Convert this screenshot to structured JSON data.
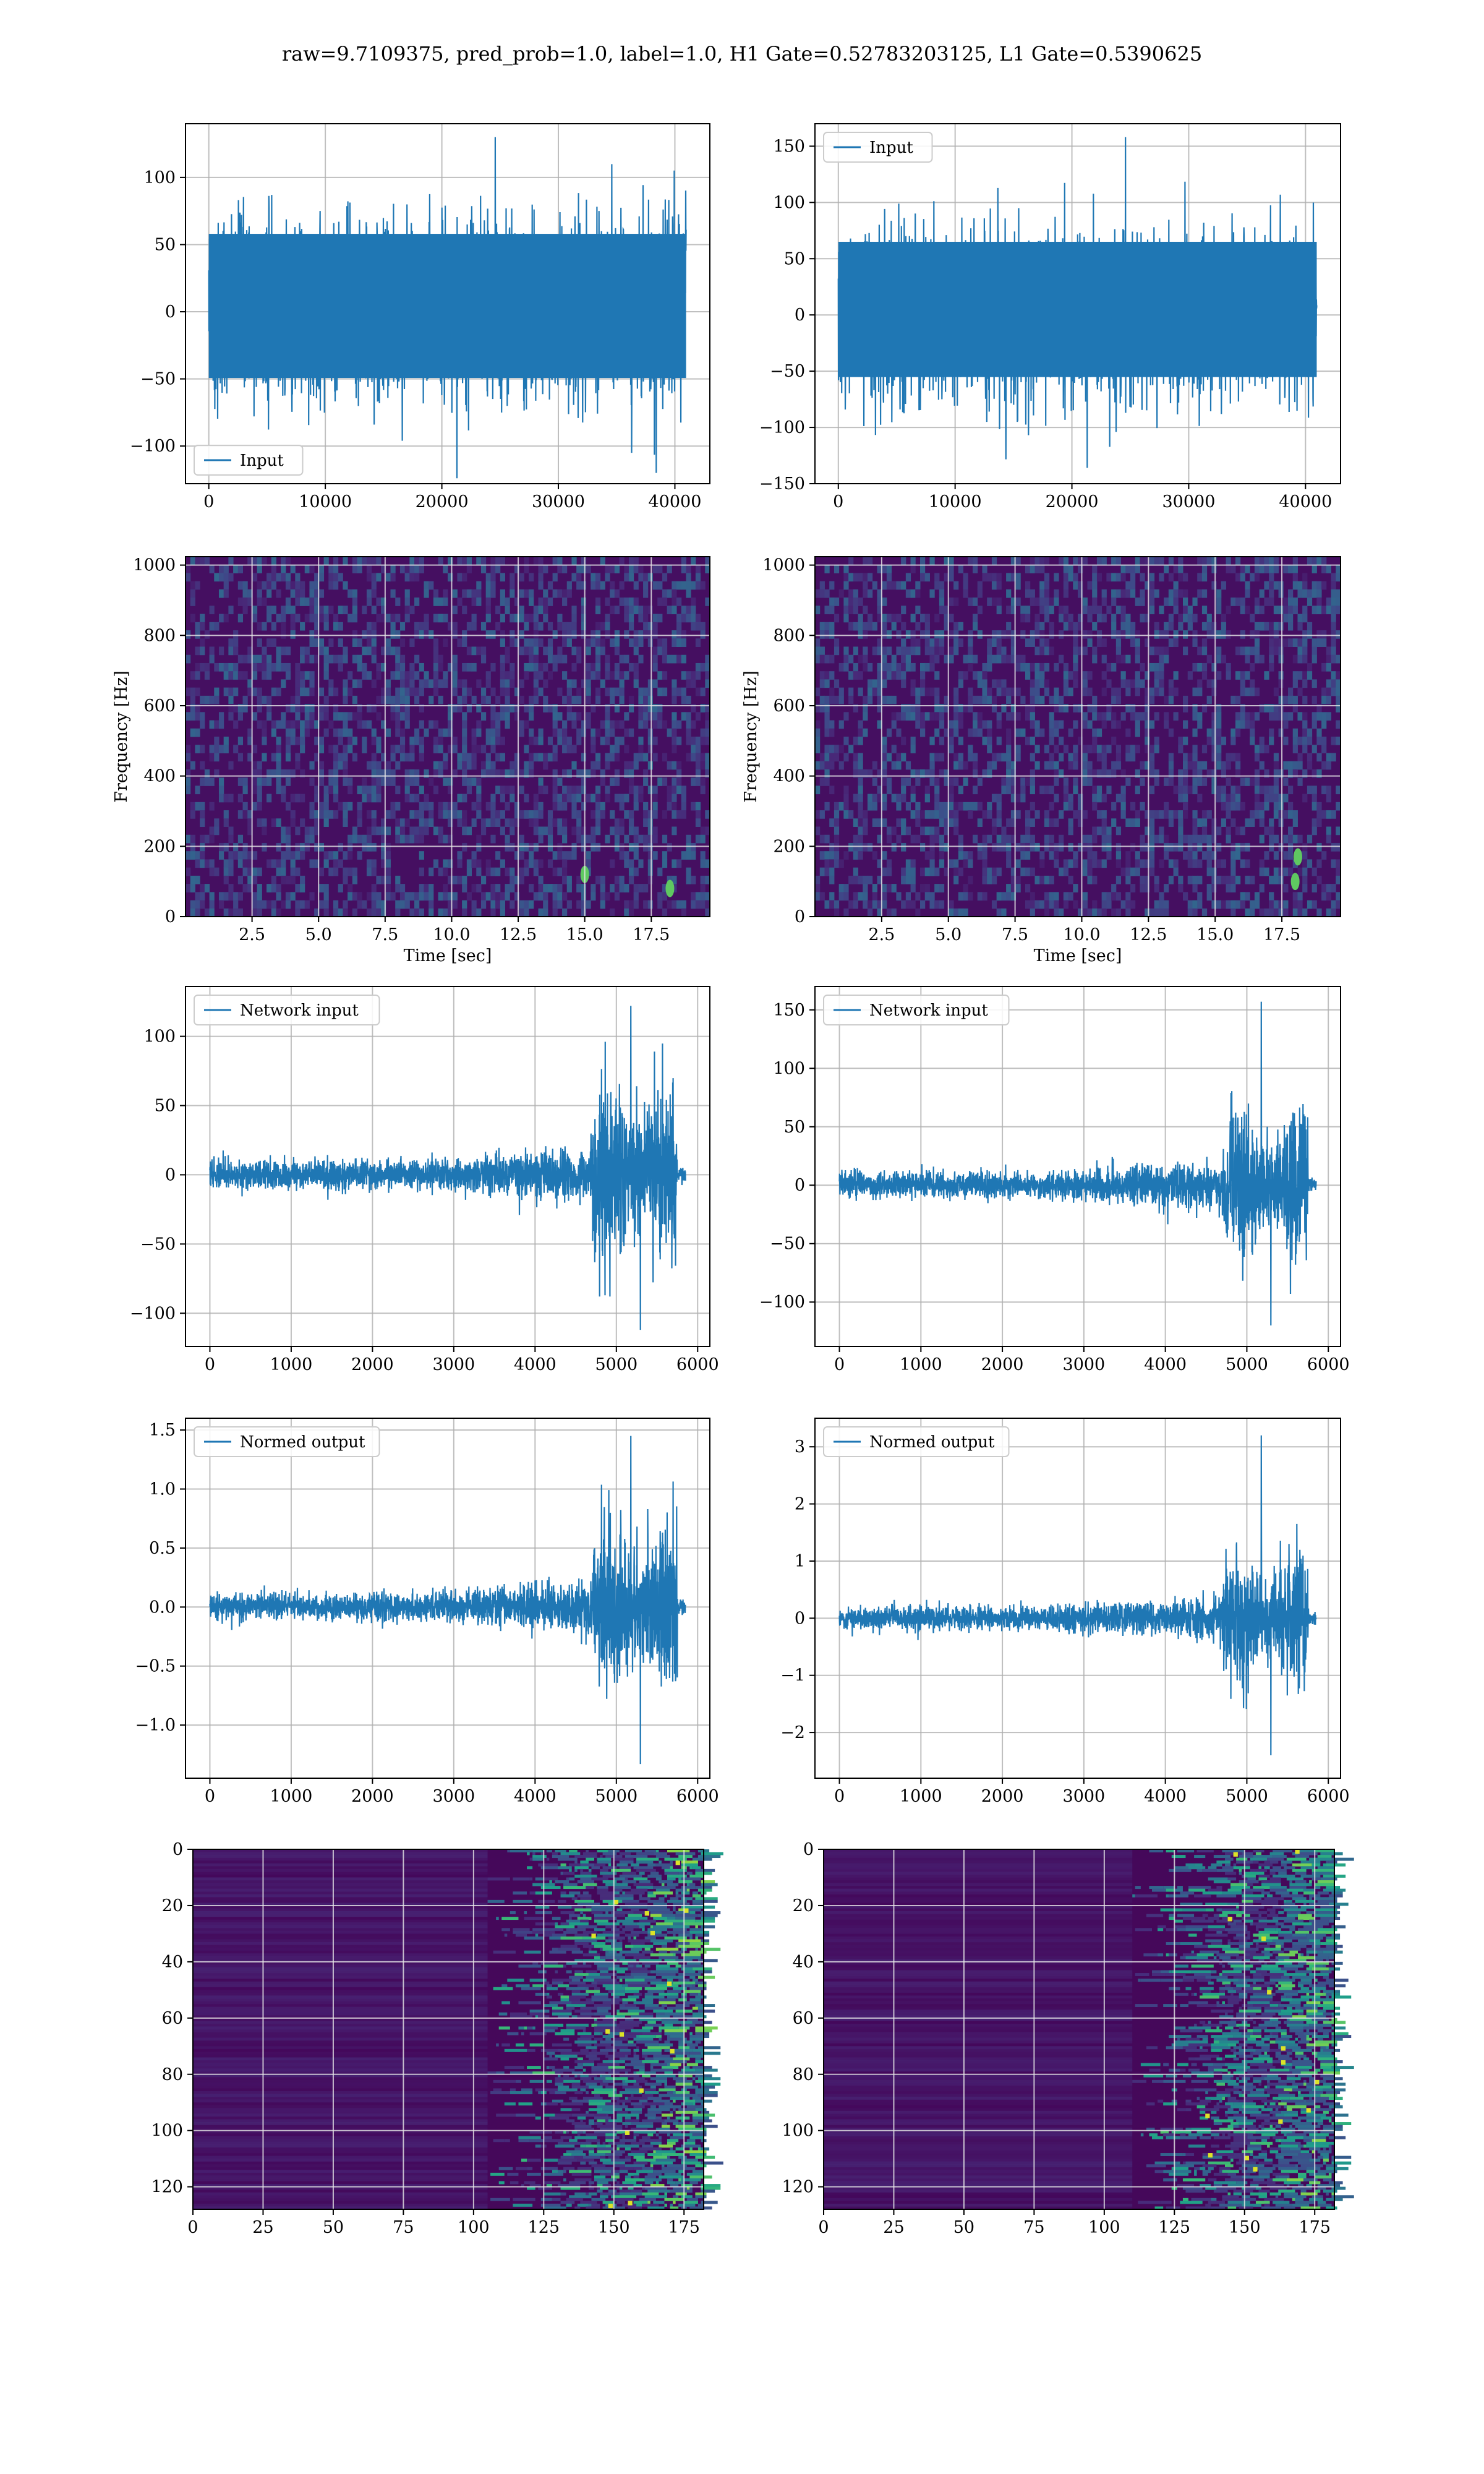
{
  "suptitle": "raw=9.7109375, pred_prob=1.0, label=1.0, H1 Gate=0.52783203125, L1 Gate=0.5390625",
  "colors": {
    "line": "#1f77b4",
    "grid": "#b0b0b0",
    "viridis_low": "#440154",
    "viridis_mid": "#21908d",
    "viridis_high": "#fde725"
  },
  "chart_data": [
    {
      "id": "h1-input",
      "type": "line",
      "legend": "Input",
      "legend_loc": "lower-left",
      "xlim": [
        -2000,
        43000
      ],
      "ylim": [
        -128,
        140
      ],
      "xticks": [
        0,
        10000,
        20000,
        30000,
        40000
      ],
      "xticklabels": [
        "0",
        "10000",
        "20000",
        "30000",
        "40000"
      ],
      "yticks": [
        -100,
        -50,
        0,
        50,
        100
      ],
      "yticklabels": [
        "−100",
        "−50",
        "0",
        "50",
        "100"
      ],
      "grid": true,
      "signal": {
        "x_start": 0,
        "x_end": 40960,
        "n_samples": 40960,
        "core_amplitude": 58,
        "max": 130,
        "min": -124,
        "envelope": "stationary"
      }
    },
    {
      "id": "l1-input",
      "type": "line",
      "legend": "Input",
      "legend_loc": "upper-left",
      "xlim": [
        -2000,
        43000
      ],
      "ylim": [
        -150,
        170
      ],
      "xticks": [
        0,
        10000,
        20000,
        30000,
        40000
      ],
      "xticklabels": [
        "0",
        "10000",
        "20000",
        "30000",
        "40000"
      ],
      "yticks": [
        -150,
        -100,
        -50,
        0,
        50,
        100,
        150
      ],
      "yticklabels": [
        "−150",
        "−100",
        "−50",
        "0",
        "50",
        "100",
        "150"
      ],
      "grid": true,
      "signal": {
        "x_start": 0,
        "x_end": 40960,
        "n_samples": 40960,
        "core_amplitude": 65,
        "max": 158,
        "min": -136,
        "envelope": "stationary"
      }
    },
    {
      "id": "h1-spectrogram",
      "type": "heatmap",
      "colormap": "viridis",
      "xlabel": "Time [sec]",
      "ylabel": "Frequency [Hz]",
      "xlim": [
        0,
        19.7
      ],
      "ylim": [
        0,
        1024
      ],
      "xticks": [
        2.5,
        5,
        7.5,
        10,
        12.5,
        15,
        17.5
      ],
      "xticklabels": [
        "2.5",
        "5.0",
        "7.5",
        "10.0",
        "12.5",
        "15.0",
        "17.5"
      ],
      "yticks": [
        0,
        200,
        400,
        600,
        800,
        1000
      ],
      "yticklabels": [
        "0",
        "200",
        "400",
        "600",
        "800",
        "1000"
      ],
      "grid": true,
      "bright_spots": [
        {
          "t": 15.0,
          "f": 120
        },
        {
          "t": 18.2,
          "f": 80
        }
      ]
    },
    {
      "id": "l1-spectrogram",
      "type": "heatmap",
      "colormap": "viridis",
      "xlabel": "Time [sec]",
      "ylabel": "Frequency [Hz]",
      "xlim": [
        0,
        19.7
      ],
      "ylim": [
        0,
        1024
      ],
      "xticks": [
        2.5,
        5,
        7.5,
        10,
        12.5,
        15,
        17.5
      ],
      "xticklabels": [
        "2.5",
        "5.0",
        "7.5",
        "10.0",
        "12.5",
        "15.0",
        "17.5"
      ],
      "yticks": [
        0,
        200,
        400,
        600,
        800,
        1000
      ],
      "yticklabels": [
        "0",
        "200",
        "400",
        "600",
        "800",
        "1000"
      ],
      "grid": true,
      "bright_spots": [
        {
          "t": 18.0,
          "f": 100
        },
        {
          "t": 18.1,
          "f": 170
        }
      ]
    },
    {
      "id": "h1-network-input",
      "type": "line",
      "legend": "Network input",
      "legend_loc": "upper-left",
      "xlim": [
        -300,
        6150
      ],
      "ylim": [
        -124,
        136
      ],
      "xticks": [
        0,
        1000,
        2000,
        3000,
        4000,
        5000,
        6000
      ],
      "xticklabels": [
        "0",
        "1000",
        "2000",
        "3000",
        "4000",
        "5000",
        "6000"
      ],
      "yticks": [
        -100,
        -50,
        0,
        50,
        100
      ],
      "yticklabels": [
        "−100",
        "−50",
        "0",
        "50",
        "100"
      ],
      "grid": true,
      "signal": {
        "x_start": 0,
        "x_end": 5850,
        "n_samples": 5850,
        "base_amplitude": 11,
        "burst_start": 4700,
        "burst_end": 5750,
        "burst_amplitude": 55,
        "max": 122,
        "min": -112,
        "tail_start": 5750
      }
    },
    {
      "id": "l1-network-input",
      "type": "line",
      "legend": "Network input",
      "legend_loc": "upper-left",
      "xlim": [
        -300,
        6150
      ],
      "ylim": [
        -138,
        170
      ],
      "xticks": [
        0,
        1000,
        2000,
        3000,
        4000,
        5000,
        6000
      ],
      "xticklabels": [
        "0",
        "1000",
        "2000",
        "3000",
        "4000",
        "5000",
        "6000"
      ],
      "yticks": [
        -100,
        -50,
        0,
        50,
        100,
        150
      ],
      "yticklabels": [
        "−100",
        "−50",
        "0",
        "50",
        "100",
        "150"
      ],
      "grid": true,
      "signal": {
        "x_start": 0,
        "x_end": 5850,
        "n_samples": 5850,
        "base_amplitude": 12,
        "burst_start": 4700,
        "burst_end": 5750,
        "burst_amplitude": 50,
        "max": 157,
        "min": -120,
        "tail_start": 5750
      }
    },
    {
      "id": "h1-normed-output",
      "type": "line",
      "legend": "Normed output",
      "legend_loc": "upper-left",
      "xlim": [
        -300,
        6150
      ],
      "ylim": [
        -1.45,
        1.6
      ],
      "xticks": [
        0,
        1000,
        2000,
        3000,
        4000,
        5000,
        6000
      ],
      "xticklabels": [
        "0",
        "1000",
        "2000",
        "3000",
        "4000",
        "5000",
        "6000"
      ],
      "yticks": [
        -1.0,
        -0.5,
        0.0,
        0.5,
        1.0,
        1.5
      ],
      "yticklabels": [
        "−1.0",
        "−0.5",
        "0.0",
        "0.5",
        "1.0",
        "1.5"
      ],
      "grid": true,
      "signal": {
        "x_start": 0,
        "x_end": 5850,
        "n_samples": 5850,
        "base_amplitude": 0.12,
        "burst_start": 4700,
        "burst_end": 5750,
        "burst_amplitude": 0.6,
        "max": 1.45,
        "min": -1.33,
        "tail_start": 5750
      }
    },
    {
      "id": "l1-normed-output",
      "type": "line",
      "legend": "Normed output",
      "legend_loc": "upper-left",
      "xlim": [
        -300,
        6150
      ],
      "ylim": [
        -2.8,
        3.5
      ],
      "xticks": [
        0,
        1000,
        2000,
        3000,
        4000,
        5000,
        6000
      ],
      "xticklabels": [
        "0",
        "1000",
        "2000",
        "3000",
        "4000",
        "5000",
        "6000"
      ],
      "yticks": [
        -2,
        -1,
        0,
        1,
        2,
        3
      ],
      "yticklabels": [
        "−2",
        "−1",
        "0",
        "1",
        "2",
        "3"
      ],
      "grid": true,
      "signal": {
        "x_start": 0,
        "x_end": 5850,
        "n_samples": 5850,
        "base_amplitude": 0.22,
        "burst_start": 4700,
        "burst_end": 5750,
        "burst_amplitude": 0.95,
        "max": 3.2,
        "min": -2.4,
        "tail_start": 5750
      }
    },
    {
      "id": "h1-feature-map",
      "type": "heatmap",
      "colormap": "viridis",
      "xlim": [
        0,
        182
      ],
      "ylim": [
        128,
        0
      ],
      "xticks": [
        0,
        25,
        50,
        75,
        100,
        125,
        150,
        175
      ],
      "xticklabels": [
        "0",
        "25",
        "50",
        "75",
        "100",
        "125",
        "150",
        "175"
      ],
      "yticks": [
        0,
        20,
        40,
        60,
        80,
        100,
        120
      ],
      "yticklabels": [
        "0",
        "20",
        "40",
        "60",
        "80",
        "100",
        "120"
      ],
      "grid": true,
      "activity_onset_col": 105
    },
    {
      "id": "l1-feature-map",
      "type": "heatmap",
      "colormap": "viridis",
      "xlim": [
        0,
        182
      ],
      "ylim": [
        128,
        0
      ],
      "xticks": [
        0,
        25,
        50,
        75,
        100,
        125,
        150,
        175
      ],
      "xticklabels": [
        "0",
        "25",
        "50",
        "75",
        "100",
        "125",
        "150",
        "175"
      ],
      "yticks": [
        0,
        20,
        40,
        60,
        80,
        100,
        120
      ],
      "yticklabels": [
        "0",
        "20",
        "40",
        "60",
        "80",
        "100",
        "120"
      ],
      "grid": true,
      "activity_onset_col": 110
    }
  ]
}
